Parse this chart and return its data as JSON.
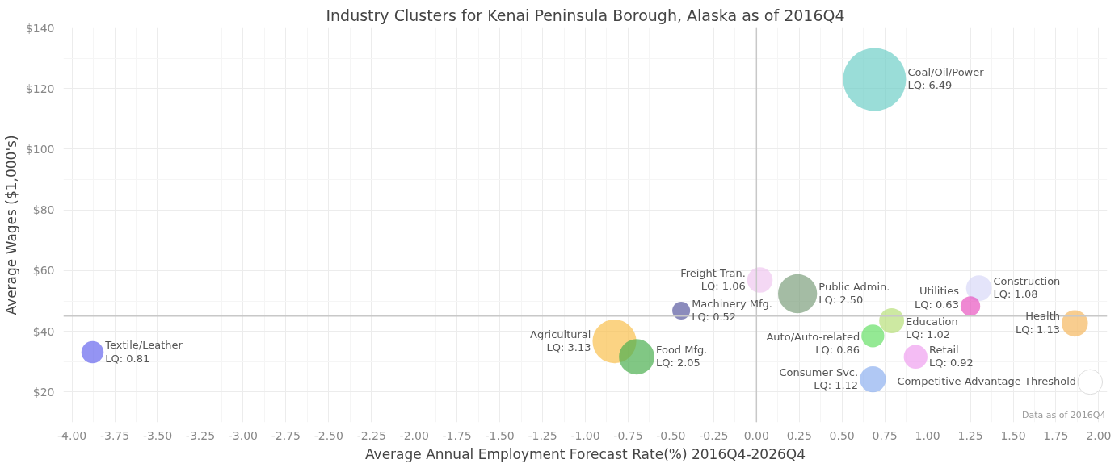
{
  "chart_data": {
    "type": "bubble",
    "title": "Industry Clusters for Kenai Peninsula Borough, Alaska as of 2016Q4",
    "xlabel": "Average Annual Employment Forecast Rate(%) 2016Q4-2026Q4",
    "ylabel": "Average Wages ($1,000's)",
    "xlim": [
      -4.05,
      2.05
    ],
    "xticks": [
      {
        "value": -4,
        "label": "-4.00"
      },
      {
        "value": -3.75,
        "label": "-3.75"
      },
      {
        "value": -3.5,
        "label": "-3.50"
      },
      {
        "value": -3.25,
        "label": "-3.25"
      },
      {
        "value": -3,
        "label": "-3.00"
      },
      {
        "value": -2.75,
        "label": "-2.75"
      },
      {
        "value": -2.5,
        "label": "-2.50"
      },
      {
        "value": -2.25,
        "label": "-2.25"
      },
      {
        "value": -2,
        "label": "-2.00"
      },
      {
        "value": -1.75,
        "label": "-1.75"
      },
      {
        "value": -1.5,
        "label": "-1.50"
      },
      {
        "value": -1.25,
        "label": "-1.25"
      },
      {
        "value": -1,
        "label": "-1.00"
      },
      {
        "value": -0.75,
        "label": "-0.75"
      },
      {
        "value": -0.5,
        "label": "-0.50"
      },
      {
        "value": -0.25,
        "label": "-0.25"
      },
      {
        "value": 0,
        "label": "0.00"
      },
      {
        "value": 0.25,
        "label": "0.25"
      },
      {
        "value": 0.5,
        "label": "0.50"
      },
      {
        "value": 0.75,
        "label": "0.75"
      },
      {
        "value": 1,
        "label": "1.00"
      },
      {
        "value": 1.25,
        "label": "1.25"
      },
      {
        "value": 1.5,
        "label": "1.50"
      },
      {
        "value": 1.75,
        "label": "1.75"
      },
      {
        "value": 2,
        "label": "2.00"
      }
    ],
    "ylim": [
      10,
      140
    ],
    "yticks": [
      {
        "value": 20,
        "label": "$20"
      },
      {
        "value": 40,
        "label": "$40"
      },
      {
        "value": 60,
        "label": "$60"
      },
      {
        "value": 80,
        "label": "$80"
      },
      {
        "value": 100,
        "label": "$100"
      },
      {
        "value": 120,
        "label": "$120"
      },
      {
        "value": 140,
        "label": "$140"
      }
    ],
    "grid": true,
    "legend": false,
    "ref_lines": [
      {
        "axis": "x",
        "value": 0,
        "color": "#c8c8c8"
      },
      {
        "axis": "y",
        "value": 45,
        "color": "#c8c8c8"
      }
    ],
    "series": [
      {
        "name": "Textile/Leather",
        "color": "#6666ee",
        "x": [
          -3.88
        ],
        "values": [
          33.1
        ],
        "sizes": [
          0.81
        ],
        "value_labels": [
          "LQ: 0.81"
        ]
      },
      {
        "name": "Agricultural",
        "color": "#f9c04f",
        "x": [
          -0.83
        ],
        "values": [
          36.7
        ],
        "sizes": [
          3.13
        ],
        "value_labels": [
          "LQ: 3.13"
        ]
      },
      {
        "name": "Food Mfg.",
        "color": "#4caf50",
        "x": [
          -0.7
        ],
        "values": [
          31.6
        ],
        "sizes": [
          2.05
        ],
        "value_labels": [
          "LQ: 2.05"
        ]
      },
      {
        "name": "Machinery Mfg.",
        "color": "#5a5aa0",
        "x": [
          -0.44
        ],
        "values": [
          46.8
        ],
        "sizes": [
          0.52
        ],
        "value_labels": [
          "LQ: 0.52"
        ]
      },
      {
        "name": "Freight Tran.",
        "color": "#f0c8f0",
        "x": [
          0.02
        ],
        "values": [
          56.9
        ],
        "sizes": [
          1.06
        ],
        "value_labels": [
          "LQ: 1.06"
        ]
      },
      {
        "name": "Public Admin.",
        "color": "#7ea07e",
        "x": [
          0.24
        ],
        "values": [
          52.4
        ],
        "sizes": [
          2.5
        ],
        "value_labels": [
          "LQ: 2.50"
        ]
      },
      {
        "name": "Coal/Oil/Power",
        "color": "#6fcfc8",
        "x": [
          0.69
        ],
        "values": [
          123
        ],
        "sizes": [
          6.49
        ],
        "value_labels": [
          "LQ: 6.49"
        ]
      },
      {
        "name": "Education",
        "color": "#b8e07a",
        "x": [
          0.79
        ],
        "values": [
          43.5
        ],
        "sizes": [
          1.02
        ],
        "value_labels": [
          "LQ: 1.02"
        ]
      },
      {
        "name": "Auto/Auto-related",
        "color": "#66e066",
        "x": [
          0.68
        ],
        "values": [
          38.5
        ],
        "sizes": [
          0.86
        ],
        "value_labels": [
          "LQ: 0.86"
        ]
      },
      {
        "name": "Consumer Svc.",
        "color": "#8fb0f0",
        "x": [
          0.68
        ],
        "values": [
          24.2
        ],
        "sizes": [
          1.12
        ],
        "value_labels": [
          "LQ: 1.12"
        ]
      },
      {
        "name": "Retail",
        "color": "#f0a0f0",
        "x": [
          0.93
        ],
        "values": [
          31.6
        ],
        "sizes": [
          0.92
        ],
        "value_labels": [
          "LQ: 0.92"
        ]
      },
      {
        "name": "Construction",
        "color": "#d8d8f8",
        "x": [
          1.3
        ],
        "values": [
          54.2
        ],
        "sizes": [
          1.08
        ],
        "value_labels": [
          "LQ: 1.08"
        ]
      },
      {
        "name": "Utilities",
        "color": "#e855c0",
        "x": [
          1.25
        ],
        "values": [
          48.3
        ],
        "sizes": [
          0.63
        ],
        "value_labels": [
          "LQ: 0.63"
        ]
      },
      {
        "name": "Health",
        "color": "#f5b860",
        "x": [
          1.86
        ],
        "values": [
          42.6
        ],
        "sizes": [
          1.13
        ],
        "value_labels": [
          "LQ: 1.13"
        ]
      },
      {
        "name": "Competitive Advantage Threshold",
        "color": "#ffffff",
        "x": [
          1.95
        ],
        "values": [
          23.3
        ]
      }
    ],
    "annotations": [
      "Data as of 2016Q4"
    ]
  }
}
